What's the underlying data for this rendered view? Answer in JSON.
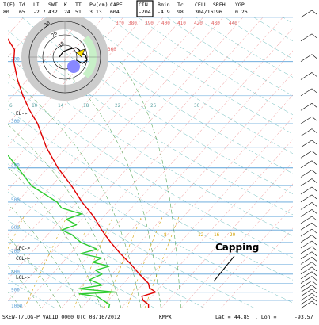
{
  "header": {
    "labels": [
      "T(F)",
      "Td",
      "LI",
      "SWT",
      "K",
      "TT",
      "Pw(cm)",
      "CAPE",
      "CIN",
      "Bmin",
      "Tc",
      "CELL",
      "SREH",
      "YGP"
    ],
    "values": [
      "80",
      "65",
      "-2.7",
      "432",
      "24",
      "51",
      "3.13",
      "604",
      "-204",
      "-4.9",
      "98",
      "304/16",
      "196",
      "0.26"
    ],
    "highlighted": "CIN"
  },
  "footer": {
    "title": "SKEW-T/LOG-P VALID 0000 UTC 08/16/2012",
    "station": "KMPX",
    "lat_label": "Lat =",
    "lat": "44.85",
    "lon_label": ", Lon =",
    "lon": "-93.57"
  },
  "annotation": {
    "text": "Capping"
  },
  "level_labels": [
    "EL->",
    "LFC->",
    "CCL->",
    "LCL->"
  ],
  "hodograph": {
    "ring_labels": [
      "10",
      "20",
      "30"
    ]
  },
  "chart_data": {
    "type": "skew-t log-p",
    "pressure_axis": {
      "label_values": [
        "200",
        "300",
        "400",
        "500",
        "600",
        "700",
        "800",
        "900",
        "1000"
      ],
      "range": [
        150,
        1000
      ]
    },
    "isotherm_labels": [
      "6",
      "10",
      "14",
      "18",
      "22",
      "26",
      "30"
    ],
    "theta_e_labels": [
      "370",
      "380",
      "390",
      "400",
      "410",
      "420",
      "430",
      "440",
      "360"
    ],
    "mixing_ratio_labels": [
      "4",
      "8",
      "12",
      "16",
      "20"
    ],
    "colors": {
      "temperature": "#e00000",
      "dewpoint": "#2ecc2e",
      "isobars": "#5aa0d8",
      "isotherms": "#e88",
      "dry_adiabats": "#4aa",
      "moist_adiabats": "#2c8f2c",
      "mixing_ratio": "#d2a000",
      "hodograph_ring": "#cccccc",
      "hodograph_ring_light": "#c8f0c8",
      "storm_motion": "#8888ff"
    },
    "series": [
      {
        "name": "temperature",
        "points": [
          [
            1000,
            25.5
          ],
          [
            975,
            24.8
          ],
          [
            950,
            23.0
          ],
          [
            925,
            22.0
          ],
          [
            900,
            24.0
          ],
          [
            875,
            22.0
          ],
          [
            850,
            21.0
          ],
          [
            800,
            17.5
          ],
          [
            750,
            14.0
          ],
          [
            700,
            10.0
          ],
          [
            650,
            6.0
          ],
          [
            600,
            2.0
          ],
          [
            550,
            -2.0
          ],
          [
            500,
            -7.0
          ],
          [
            450,
            -12.0
          ],
          [
            400,
            -18.0
          ],
          [
            350,
            -24.0
          ],
          [
            300,
            -30.0
          ],
          [
            275,
            -34.0
          ],
          [
            250,
            -38.0
          ],
          [
            225,
            -42.0
          ],
          [
            200,
            -46.0
          ],
          [
            185,
            -48.0
          ],
          [
            170,
            -52.0
          ],
          [
            160,
            -55.0
          ],
          [
            150,
            -57.0
          ]
        ]
      },
      {
        "name": "dewpoint",
        "points": [
          [
            1000,
            17.5
          ],
          [
            975,
            17.0
          ],
          [
            950,
            15.0
          ],
          [
            925,
            13.0
          ],
          [
            910,
            9.0
          ],
          [
            900,
            16.0
          ],
          [
            880,
            8.0
          ],
          [
            860,
            12.0
          ],
          [
            850,
            11.0
          ],
          [
            830,
            8.5
          ],
          [
            800,
            10.0
          ],
          [
            780,
            8.0
          ],
          [
            760,
            10.0
          ],
          [
            740,
            6.0
          ],
          [
            720,
            7.0
          ],
          [
            700,
            2.0
          ],
          [
            680,
            4.5
          ],
          [
            650,
            0.0
          ],
          [
            620,
            -3.0
          ],
          [
            600,
            -6.0
          ],
          [
            580,
            -4.0
          ],
          [
            560,
            -7.0
          ],
          [
            540,
            -5.0
          ],
          [
            520,
            -10.0
          ],
          [
            500,
            -12.0
          ],
          [
            450,
            -20.0
          ],
          [
            400,
            -26.0
          ],
          [
            350,
            -33.0
          ],
          [
            300,
            -40.0
          ],
          [
            280,
            -42.0
          ],
          [
            260,
            -40.0
          ],
          [
            250,
            -45.0
          ],
          [
            240,
            -50.0
          ],
          [
            230,
            -55.0
          ],
          [
            210,
            -58.0
          ],
          [
            200,
            -60.0
          ]
        ]
      }
    ]
  }
}
